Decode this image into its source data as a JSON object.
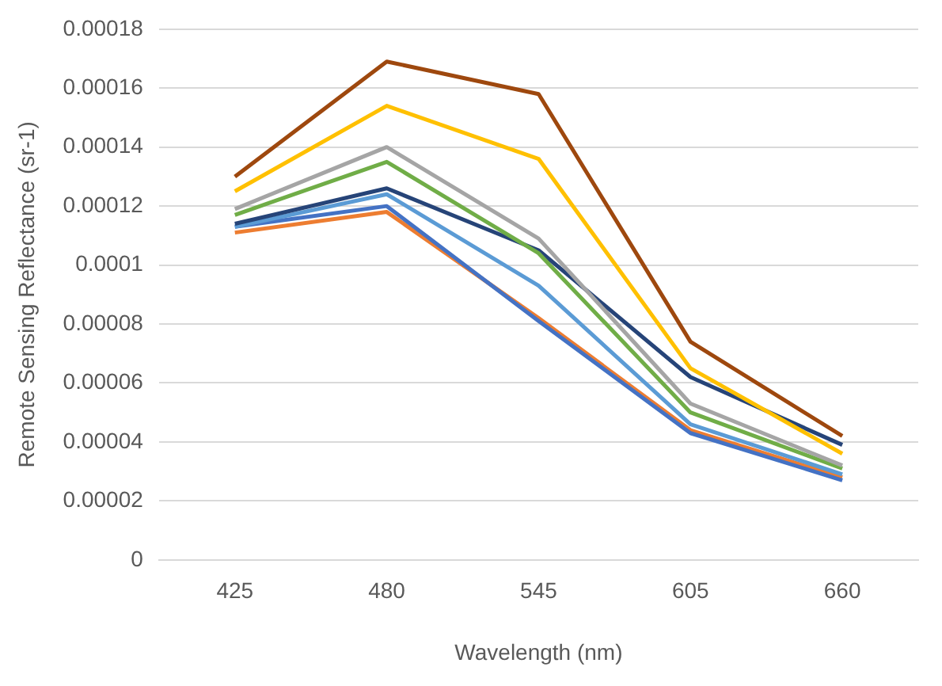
{
  "chart_data": {
    "type": "line",
    "xlabel": "Wavelength (nm)",
    "ylabel": "Remote Sensing Reflectance (sr-1)",
    "categories": [
      "425",
      "480",
      "545",
      "605",
      "660"
    ],
    "ylim": [
      0,
      0.00018
    ],
    "yticks": [
      0,
      {
        "value": 2e-05,
        "label": "0.00002"
      },
      {
        "value": 4e-05,
        "label": "0.00004"
      },
      {
        "value": 6e-05,
        "label": "0.00006"
      },
      {
        "value": 8e-05,
        "label": "0.00008"
      },
      0.0001,
      0.00012,
      0.00014,
      0.00016,
      0.00018
    ],
    "grid": "y",
    "legend": false,
    "marker": "none",
    "line_style": "solid",
    "series": [
      {
        "color": "#9e480e",
        "values": [
          0.00013,
          0.000169,
          0.000158,
          7.4e-05,
          4.2e-05
        ]
      },
      {
        "color": "#ffc000",
        "values": [
          0.000125,
          0.000154,
          0.000136,
          6.5e-05,
          3.6e-05
        ]
      },
      {
        "color": "#a5a5a5",
        "values": [
          0.000119,
          0.00014,
          0.000109,
          5.3e-05,
          3.2e-05
        ]
      },
      {
        "color": "#70ad47",
        "values": [
          0.000117,
          0.000135,
          0.000104,
          5e-05,
          3.1e-05
        ]
      },
      {
        "color": "#264478",
        "values": [
          0.000114,
          0.000126,
          0.000105,
          6.2e-05,
          3.9e-05
        ]
      },
      {
        "color": "#5b9bd5",
        "values": [
          0.000113,
          0.000124,
          9.3e-05,
          4.6e-05,
          2.9e-05
        ]
      },
      {
        "color": "#4472c4",
        "values": [
          0.000113,
          0.00012,
          8.1e-05,
          4.3e-05,
          2.7e-05
        ]
      },
      {
        "color": "#ed7d31",
        "values": [
          0.000111,
          0.000118,
          8.2e-05,
          4.4e-05,
          2.8e-05
        ]
      }
    ]
  }
}
